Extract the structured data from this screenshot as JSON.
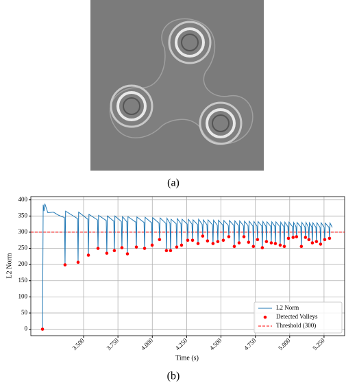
{
  "image_caption": "(a)",
  "chart_caption": "(b)",
  "chart_data": {
    "type": "line",
    "xlabel": "Time (s)",
    "ylabel": "L2 Norm",
    "xlim": [
      3.116,
      5.4
    ],
    "ylim": [
      -20,
      410
    ],
    "xticks": [
      {
        "value": 3.5,
        "label": "3.500"
      },
      {
        "value": 3.75,
        "label": "3.750"
      },
      {
        "value": 4,
        "label": "4.000"
      },
      {
        "value": 4.25,
        "label": "4.250"
      },
      {
        "value": 4.5,
        "label": "4.500"
      },
      {
        "value": 4.75,
        "label": "4.750"
      },
      {
        "value": 5,
        "label": "5.000"
      },
      {
        "value": 5.25,
        "label": "5.250"
      }
    ],
    "yticks": [
      0,
      50,
      100,
      150,
      200,
      250,
      300,
      350,
      400
    ],
    "grid": true,
    "legend": "lower right",
    "series": [
      {
        "name": "L2 Norm",
        "color": "#1f77b4",
        "type": "line",
        "x": [
          3.201,
          3.206,
          3.212,
          3.218,
          3.24,
          3.28,
          3.32,
          3.361,
          3.365,
          3.369,
          3.456,
          3.46,
          3.464,
          3.531,
          3.535,
          3.539,
          3.601,
          3.605,
          3.609,
          3.665,
          3.669,
          3.673,
          3.72,
          3.724,
          3.728,
          3.775,
          3.779,
          3.783,
          3.815,
          3.819,
          3.823,
          3.88,
          3.884,
          3.888,
          3.94,
          3.944,
          3.948,
          3.995,
          3.999,
          4.003,
          4.049,
          4.053,
          4.057,
          4.099,
          4.103,
          4.107,
          4.129,
          4.133,
          4.137,
          4.174,
          4.178,
          4.182,
          4.209,
          4.213,
          4.217,
          4.254,
          4.258,
          4.262,
          4.289,
          4.293,
          4.297,
          4.329,
          4.333,
          4.337,
          4.363,
          4.367,
          4.371,
          4.398,
          4.402,
          4.406,
          4.438,
          4.442,
          4.446,
          4.473,
          4.477,
          4.481,
          4.513,
          4.517,
          4.521,
          4.553,
          4.557,
          4.561,
          4.593,
          4.597,
          4.601,
          4.628,
          4.632,
          4.636,
          4.663,
          4.667,
          4.671,
          4.697,
          4.701,
          4.705,
          4.732,
          4.736,
          4.74,
          4.762,
          4.766,
          4.77,
          4.797,
          4.801,
          4.805,
          4.827,
          4.831,
          4.835,
          4.862,
          4.866,
          4.87,
          4.892,
          4.896,
          4.9,
          4.927,
          4.931,
          4.935,
          4.957,
          4.961,
          4.965,
          4.987,
          4.991,
          4.995,
          5.021,
          5.025,
          5.029,
          5.046,
          5.05,
          5.054,
          5.081,
          5.085,
          5.089,
          5.111,
          5.115,
          5.119,
          5.136,
          5.14,
          5.144,
          5.161,
          5.165,
          5.169,
          5.191,
          5.195,
          5.199,
          5.221,
          5.225,
          5.229,
          5.251,
          5.255,
          5.259,
          5.286,
          5.29,
          5.294,
          5.31
        ],
        "values": [
          0,
          385,
          365,
          388,
          360,
          362,
          352,
          345,
          199,
          365,
          342,
          207,
          362,
          340,
          229,
          355,
          338,
          250,
          352,
          336,
          235,
          350,
          334,
          243,
          350,
          333,
          252,
          348,
          332,
          233,
          348,
          331,
          254,
          347,
          330,
          250,
          346,
          329,
          260,
          345,
          328,
          277,
          344,
          327,
          243,
          343,
          327,
          243,
          340,
          326,
          254,
          342,
          326,
          260,
          340,
          325,
          275,
          340,
          325,
          275,
          338,
          324,
          265,
          340,
          324,
          288,
          338,
          323,
          273,
          338,
          323,
          265,
          337,
          322,
          271,
          337,
          322,
          275,
          336,
          321,
          286,
          336,
          321,
          256,
          335,
          320,
          267,
          335,
          320,
          286,
          334,
          320,
          269,
          334,
          319,
          256,
          333,
          319,
          277,
          333,
          319,
          252,
          333,
          318,
          271,
          332,
          318,
          267,
          332,
          318,
          265,
          332,
          318,
          260,
          331,
          317,
          256,
          331,
          317,
          281,
          331,
          317,
          284,
          330,
          317,
          286,
          330,
          316,
          256,
          330,
          316,
          284,
          330,
          316,
          277,
          329,
          316,
          267,
          329,
          315,
          271,
          329,
          315,
          263,
          329,
          315,
          277,
          328,
          315,
          281,
          328,
          315
        ]
      },
      {
        "name": "Detected Valleys",
        "color": "#ff0000",
        "type": "scatter",
        "x": [
          3.201,
          3.365,
          3.46,
          3.535,
          3.605,
          3.669,
          3.724,
          3.779,
          3.819,
          3.884,
          3.944,
          3.999,
          4.053,
          4.103,
          4.133,
          4.178,
          4.213,
          4.258,
          4.293,
          4.333,
          4.367,
          4.402,
          4.442,
          4.477,
          4.517,
          4.557,
          4.597,
          4.632,
          4.667,
          4.701,
          4.736,
          4.766,
          4.801,
          4.831,
          4.866,
          4.896,
          4.931,
          4.961,
          4.991,
          5.025,
          5.05,
          5.085,
          5.115,
          5.14,
          5.165,
          5.195,
          5.225,
          5.255,
          5.29
        ],
        "values": [
          0,
          199,
          207,
          229,
          250,
          235,
          243,
          252,
          233,
          254,
          250,
          260,
          277,
          243,
          243,
          254,
          260,
          275,
          275,
          265,
          288,
          273,
          265,
          271,
          275,
          286,
          256,
          267,
          286,
          269,
          256,
          277,
          252,
          271,
          267,
          265,
          260,
          256,
          281,
          284,
          286,
          256,
          284,
          277,
          267,
          271,
          263,
          277,
          281
        ]
      }
    ],
    "hlines": [
      {
        "name": "Threshold (300)",
        "value": 300,
        "color": "#ff0000",
        "style": "dashed"
      }
    ]
  }
}
